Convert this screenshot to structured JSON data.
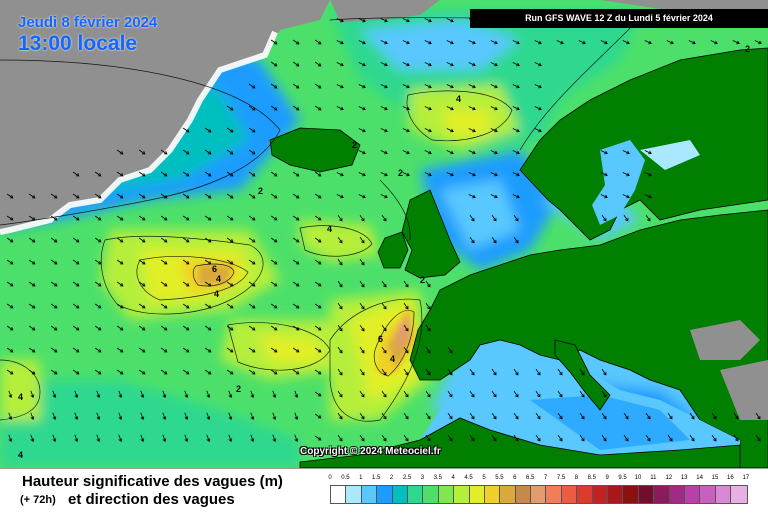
{
  "header": {
    "date": "Jeudi 8 février 2024",
    "time": "13:00 locale",
    "run": "Run GFS WAVE 12 Z du Lundi 5 février 2024"
  },
  "copyright": "Copyright © 2024 Meteociel.fr",
  "legend": {
    "title": "Hauteur significative des vagues (m)",
    "forecast": "(+ 72h)",
    "subtitle": "et direction des vagues",
    "ticks": [
      "0",
      "0.5",
      "1",
      "1.5",
      "2",
      "2.5",
      "3",
      "3.5",
      "4",
      "4.5",
      "5",
      "5.5",
      "6",
      "6.5",
      "7",
      "7.5",
      "8",
      "8.5",
      "9",
      "9.5",
      "10",
      "11",
      "12",
      "13",
      "14",
      "15",
      "16",
      "17"
    ],
    "colors": [
      "#ffffff",
      "#a9e8ff",
      "#58c8ff",
      "#1c9cff",
      "#00bfbf",
      "#2ed88f",
      "#4ce06a",
      "#7ee850",
      "#b6ef3a",
      "#e2ef28",
      "#f0cf28",
      "#d9a93c",
      "#c48a4b",
      "#e39c6e",
      "#f07e5a",
      "#ec5b44",
      "#dc3a2e",
      "#c42222",
      "#a81818",
      "#8b1010",
      "#740c2e",
      "#8d1a5e",
      "#a02a86",
      "#b840a8",
      "#c860c0",
      "#d888d4",
      "#e6b0e2"
    ]
  },
  "contour_labels": [
    "2",
    "2",
    "2",
    "2",
    "2",
    "2",
    "4",
    "4",
    "4",
    "4",
    "4",
    "4",
    "4",
    "6",
    "6"
  ],
  "colors": {
    "land": "#007f00",
    "ice": "#909090",
    "borders": "#000000",
    "text_accent": "#1565ff"
  }
}
